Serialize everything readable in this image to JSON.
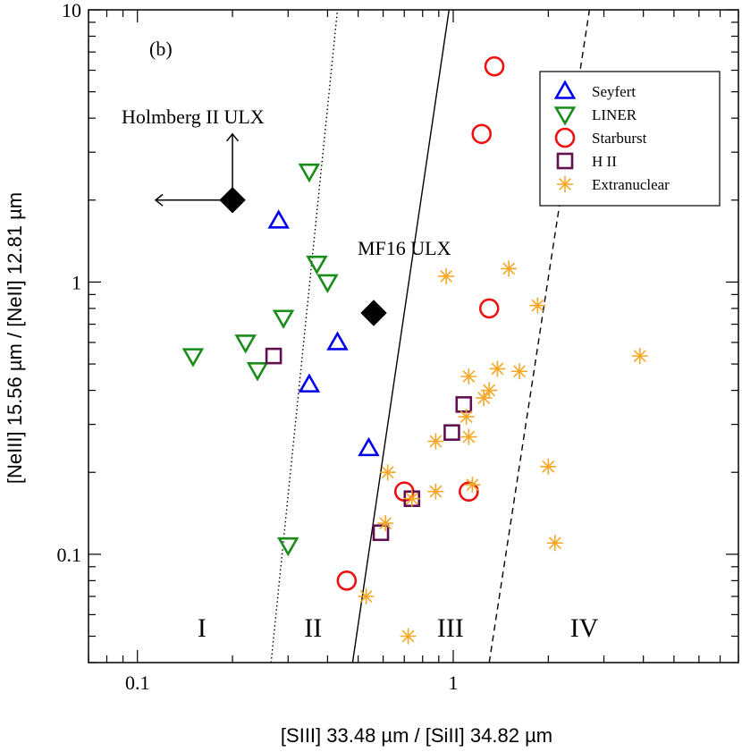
{
  "chart_data": {
    "type": "scatter",
    "panel_label": "(b)",
    "xlabel": "[SIII] 33.48 µm / [SiII] 34.82 µm",
    "ylabel": "[NeIII] 15.56 µm / [NeII] 12.81 µm",
    "x_scale": "log",
    "y_scale": "log",
    "xlim": [
      0.07,
      8
    ],
    "ylim": [
      0.04,
      10
    ],
    "x_tick_labels": [
      {
        "value": 0.1,
        "label": "0.1"
      },
      {
        "value": 1,
        "label": "1"
      }
    ],
    "y_tick_labels": [
      {
        "value": 0.1,
        "label": "0.1"
      },
      {
        "value": 1,
        "label": "1"
      },
      {
        "value": 10,
        "label": "10"
      }
    ],
    "legend_position": "top-right",
    "grid": false,
    "series": [
      {
        "name": "Seyfert",
        "marker": "triangle-up",
        "color": "#0000ee",
        "points": [
          [
            0.28,
            1.68
          ],
          [
            0.43,
            0.6
          ],
          [
            0.35,
            0.42
          ],
          [
            0.54,
            0.245
          ]
        ]
      },
      {
        "name": "LINER",
        "marker": "triangle-down",
        "color": "#1a8c1a",
        "points": [
          [
            0.35,
            2.55
          ],
          [
            0.37,
            1.17
          ],
          [
            0.4,
            1.0
          ],
          [
            0.29,
            0.74
          ],
          [
            0.22,
            0.6
          ],
          [
            0.15,
            0.535
          ],
          [
            0.24,
            0.475
          ],
          [
            0.3,
            0.108
          ]
        ]
      },
      {
        "name": "Starburst",
        "marker": "circle",
        "color": "#ee1111",
        "points": [
          [
            1.35,
            6.2
          ],
          [
            1.23,
            3.5
          ],
          [
            1.3,
            0.8
          ],
          [
            0.7,
            0.17
          ],
          [
            1.12,
            0.17
          ],
          [
            0.46,
            0.08
          ]
        ]
      },
      {
        "name": "H II",
        "marker": "square",
        "color": "#601050",
        "points": [
          [
            0.27,
            0.535
          ],
          [
            1.08,
            0.355
          ],
          [
            0.99,
            0.28
          ],
          [
            0.74,
            0.16
          ],
          [
            0.59,
            0.12
          ]
        ]
      },
      {
        "name": "Extranuclear",
        "marker": "asterisk",
        "color": "#f5a623",
        "points": [
          [
            0.95,
            1.05
          ],
          [
            1.5,
            1.12
          ],
          [
            1.85,
            0.82
          ],
          [
            3.9,
            0.535
          ],
          [
            1.12,
            0.45
          ],
          [
            1.38,
            0.48
          ],
          [
            1.62,
            0.47
          ],
          [
            1.3,
            0.4
          ],
          [
            1.25,
            0.375
          ],
          [
            1.1,
            0.32
          ],
          [
            1.12,
            0.27
          ],
          [
            0.88,
            0.26
          ],
          [
            0.62,
            0.2
          ],
          [
            1.15,
            0.18
          ],
          [
            0.88,
            0.17
          ],
          [
            0.74,
            0.16
          ],
          [
            0.61,
            0.13
          ],
          [
            2.0,
            0.21
          ],
          [
            2.1,
            0.11
          ],
          [
            0.53,
            0.07
          ],
          [
            0.72,
            0.05
          ]
        ]
      }
    ],
    "ulx_points": [
      {
        "label": "Holmberg II ULX",
        "x": 0.2,
        "y": 2.0,
        "marker": "diamond",
        "color": "#000000",
        "limit_arrows": [
          "left",
          "up"
        ]
      },
      {
        "label": "MF16 ULX",
        "x": 0.56,
        "y": 0.77,
        "marker": "diamond",
        "color": "#000000"
      }
    ],
    "boundary_lines": [
      {
        "style": "dotted",
        "from": [
          0.265,
          0.04
        ],
        "to": [
          0.43,
          10
        ]
      },
      {
        "style": "solid",
        "from": [
          0.48,
          0.04
        ],
        "to": [
          0.97,
          10
        ]
      },
      {
        "style": "dashed",
        "from": [
          1.3,
          0.04
        ],
        "to": [
          2.7,
          10
        ]
      }
    ],
    "regions": [
      {
        "label": "I",
        "x": 0.16,
        "y": 0.05
      },
      {
        "label": "II",
        "x": 0.36,
        "y": 0.05
      },
      {
        "label": "III",
        "x": 0.98,
        "y": 0.05
      },
      {
        "label": "IV",
        "x": 2.6,
        "y": 0.05
      }
    ]
  }
}
